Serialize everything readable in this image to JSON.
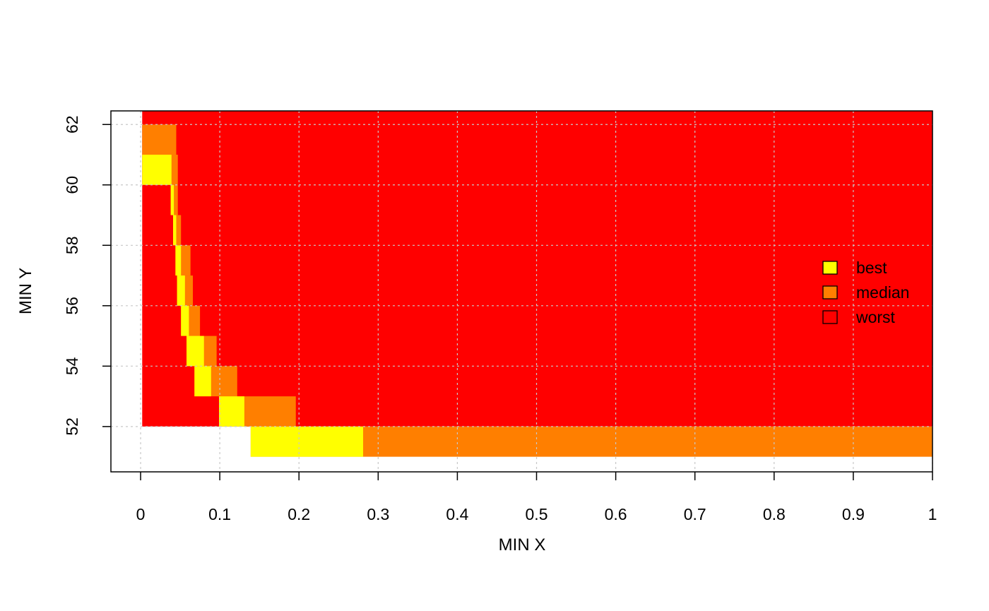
{
  "chart_data": {
    "type": "area",
    "title": "",
    "xlabel": "MIN X",
    "ylabel": "MIN Y",
    "xlim": [
      -0.0375,
      1.0
    ],
    "ylim": [
      50.5,
      62.45
    ],
    "x_ticks": [
      0,
      0.1,
      0.2,
      0.3,
      0.4,
      0.5,
      0.6,
      0.7,
      0.8,
      0.9,
      1
    ],
    "x_tick_labels": [
      "0",
      "0.1",
      "0.2",
      "0.3",
      "0.4",
      "0.5",
      "0.6",
      "0.7",
      "0.8",
      "0.9",
      "1"
    ],
    "y_ticks": [
      52,
      54,
      56,
      58,
      60,
      62
    ],
    "y_tick_labels": [
      "52",
      "54",
      "56",
      "58",
      "60",
      "62"
    ],
    "grid": true,
    "legend_position": "right",
    "y_bottom": 51,
    "y_top": 62.45,
    "x_right": 1.0,
    "series": [
      {
        "name": "worst",
        "color": "#ff0000",
        "steps": [
          {
            "y0": 52,
            "y1": 62.45,
            "x_start": 0.002
          }
        ]
      },
      {
        "name": "median",
        "color": "#ff7f00",
        "steps": [
          {
            "y0": 51,
            "y1": 52,
            "x_start": 0.139,
            "x_end": 1.0
          },
          {
            "y0": 52,
            "y1": 53,
            "x_start": 0.099,
            "x_end": 0.196
          },
          {
            "y0": 53,
            "y1": 54,
            "x_start": 0.068,
            "x_end": 0.122
          },
          {
            "y0": 54,
            "y1": 55,
            "x_start": 0.058,
            "x_end": 0.096
          },
          {
            "y0": 55,
            "y1": 56,
            "x_start": 0.051,
            "x_end": 0.075
          },
          {
            "y0": 56,
            "y1": 57,
            "x_start": 0.046,
            "x_end": 0.066
          },
          {
            "y0": 57,
            "y1": 58,
            "x_start": 0.044,
            "x_end": 0.063
          },
          {
            "y0": 58,
            "y1": 59,
            "x_start": 0.041,
            "x_end": 0.051
          },
          {
            "y0": 59,
            "y1": 60,
            "x_start": 0.038,
            "x_end": 0.047
          },
          {
            "y0": 60,
            "y1": 61,
            "x_start": 0.002,
            "x_end": 0.047
          },
          {
            "y0": 61,
            "y1": 62,
            "x_start": 0.002,
            "x_end": 0.045
          }
        ]
      },
      {
        "name": "best",
        "color": "#ffff00",
        "steps": [
          {
            "y0": 51,
            "y1": 52,
            "x_start": 0.139,
            "x_end": 0.281
          },
          {
            "y0": 52,
            "y1": 53,
            "x_start": 0.099,
            "x_end": 0.131
          },
          {
            "y0": 53,
            "y1": 54,
            "x_start": 0.068,
            "x_end": 0.089
          },
          {
            "y0": 54,
            "y1": 55,
            "x_start": 0.058,
            "x_end": 0.08
          },
          {
            "y0": 55,
            "y1": 56,
            "x_start": 0.051,
            "x_end": 0.061
          },
          {
            "y0": 56,
            "y1": 57,
            "x_start": 0.046,
            "x_end": 0.056
          },
          {
            "y0": 57,
            "y1": 58,
            "x_start": 0.044,
            "x_end": 0.051
          },
          {
            "y0": 58,
            "y1": 59,
            "x_start": 0.041,
            "x_end": 0.045
          },
          {
            "y0": 59,
            "y1": 60,
            "x_start": 0.038,
            "x_end": 0.042
          },
          {
            "y0": 60,
            "y1": 61,
            "x_start": 0.002,
            "x_end": 0.039
          }
        ]
      }
    ],
    "legend": [
      {
        "label": "best",
        "color": "#ffff00"
      },
      {
        "label": "median",
        "color": "#ff7f00"
      },
      {
        "label": "worst",
        "color": "#ff0000"
      }
    ]
  }
}
